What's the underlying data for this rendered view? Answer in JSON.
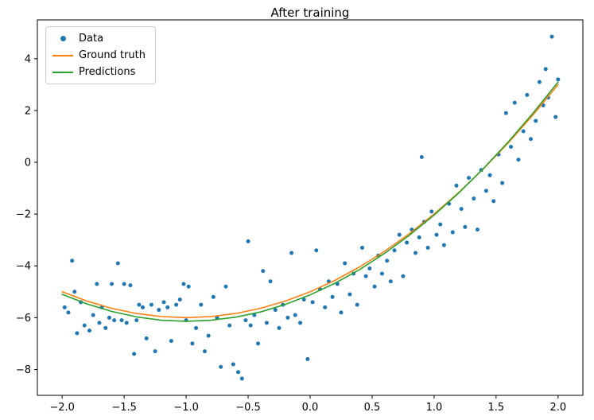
{
  "chart_data": {
    "type": "scatter",
    "title": "After training",
    "xlabel": "",
    "ylabel": "",
    "xlim": [
      -2.2,
      2.2
    ],
    "ylim": [
      -9.0,
      5.5
    ],
    "grid": false,
    "legend_position": "upper left",
    "x_ticks": [
      -2.0,
      -1.5,
      -1.0,
      -0.5,
      0.0,
      0.5,
      1.0,
      1.5,
      2.0
    ],
    "x_tick_labels": [
      "−2.0",
      "−1.5",
      "−1.0",
      "−0.5",
      "0.0",
      "0.5",
      "1.0",
      "1.5",
      "2.0"
    ],
    "y_ticks": [
      -8,
      -6,
      -4,
      -2,
      0,
      2,
      4
    ],
    "y_tick_labels": [
      "−8",
      "−6",
      "−4",
      "−2",
      "0",
      "2",
      "4"
    ],
    "axes_color": "#000000",
    "series": [
      {
        "name": "Data",
        "type": "scatter",
        "color": "#1f77b4",
        "marker": "dot",
        "points": [
          [
            -1.98,
            -5.6
          ],
          [
            -1.95,
            -5.8
          ],
          [
            -1.92,
            -3.8
          ],
          [
            -1.9,
            -5.0
          ],
          [
            -1.88,
            -6.6
          ],
          [
            -1.85,
            -5.4
          ],
          [
            -1.82,
            -6.3
          ],
          [
            -1.78,
            -6.5
          ],
          [
            -1.75,
            -5.9
          ],
          [
            -1.72,
            -4.7
          ],
          [
            -1.7,
            -6.2
          ],
          [
            -1.68,
            -5.6
          ],
          [
            -1.65,
            -6.4
          ],
          [
            -1.62,
            -6.0
          ],
          [
            -1.6,
            -4.7
          ],
          [
            -1.58,
            -6.1
          ],
          [
            -1.55,
            -3.9
          ],
          [
            -1.52,
            -6.1
          ],
          [
            -1.5,
            -4.7
          ],
          [
            -1.48,
            -6.2
          ],
          [
            -1.45,
            -4.75
          ],
          [
            -1.42,
            -7.4
          ],
          [
            -1.4,
            -6.1
          ],
          [
            -1.38,
            -5.5
          ],
          [
            -1.35,
            -5.6
          ],
          [
            -1.32,
            -6.8
          ],
          [
            -1.28,
            -5.5
          ],
          [
            -1.25,
            -7.3
          ],
          [
            -1.22,
            -5.7
          ],
          [
            -1.18,
            -5.4
          ],
          [
            -1.15,
            -5.6
          ],
          [
            -1.12,
            -6.9
          ],
          [
            -1.08,
            -5.5
          ],
          [
            -1.05,
            -5.3
          ],
          [
            -1.02,
            -4.7
          ],
          [
            -1.0,
            -6.1
          ],
          [
            -0.98,
            -4.8
          ],
          [
            -0.95,
            -7.0
          ],
          [
            -0.92,
            -6.4
          ],
          [
            -0.88,
            -5.5
          ],
          [
            -0.85,
            -7.3
          ],
          [
            -0.82,
            -6.7
          ],
          [
            -0.78,
            -5.2
          ],
          [
            -0.75,
            -6.0
          ],
          [
            -0.72,
            -7.9
          ],
          [
            -0.68,
            -4.8
          ],
          [
            -0.65,
            -6.3
          ],
          [
            -0.62,
            -7.8
          ],
          [
            -0.58,
            -8.1
          ],
          [
            -0.55,
            -8.35
          ],
          [
            -0.52,
            -6.1
          ],
          [
            -0.5,
            -3.05
          ],
          [
            -0.48,
            -6.3
          ],
          [
            -0.45,
            -5.9
          ],
          [
            -0.42,
            -7.0
          ],
          [
            -0.38,
            -4.2
          ],
          [
            -0.35,
            -6.2
          ],
          [
            -0.32,
            -4.6
          ],
          [
            -0.28,
            -5.7
          ],
          [
            -0.25,
            -6.4
          ],
          [
            -0.22,
            -5.5
          ],
          [
            -0.18,
            -6.0
          ],
          [
            -0.15,
            -3.5
          ],
          [
            -0.12,
            -5.9
          ],
          [
            -0.08,
            -6.2
          ],
          [
            -0.05,
            -5.3
          ],
          [
            -0.02,
            -7.6
          ],
          [
            0.02,
            -5.4
          ],
          [
            0.05,
            -3.4
          ],
          [
            0.08,
            -4.9
          ],
          [
            0.12,
            -5.6
          ],
          [
            0.15,
            -4.6
          ],
          [
            0.18,
            -5.2
          ],
          [
            0.22,
            -4.7
          ],
          [
            0.25,
            -5.8
          ],
          [
            0.28,
            -3.9
          ],
          [
            0.32,
            -5.1
          ],
          [
            0.35,
            -4.3
          ],
          [
            0.38,
            -5.5
          ],
          [
            0.42,
            -3.3
          ],
          [
            0.45,
            -4.4
          ],
          [
            0.48,
            -4.1
          ],
          [
            0.52,
            -4.8
          ],
          [
            0.55,
            -3.6
          ],
          [
            0.58,
            -4.3
          ],
          [
            0.62,
            -3.8
          ],
          [
            0.65,
            -4.6
          ],
          [
            0.68,
            -3.4
          ],
          [
            0.72,
            -2.8
          ],
          [
            0.75,
            -4.4
          ],
          [
            0.78,
            -3.1
          ],
          [
            0.82,
            -2.6
          ],
          [
            0.85,
            -3.5
          ],
          [
            0.88,
            -2.9
          ],
          [
            0.9,
            0.2
          ],
          [
            0.92,
            -2.3
          ],
          [
            0.95,
            -3.3
          ],
          [
            0.98,
            -1.9
          ],
          [
            1.02,
            -2.8
          ],
          [
            1.05,
            -2.4
          ],
          [
            1.08,
            -3.2
          ],
          [
            1.12,
            -1.6
          ],
          [
            1.15,
            -2.7
          ],
          [
            1.18,
            -0.9
          ],
          [
            1.22,
            -1.8
          ],
          [
            1.25,
            -2.5
          ],
          [
            1.28,
            -0.6
          ],
          [
            1.32,
            -1.4
          ],
          [
            1.35,
            -2.6
          ],
          [
            1.38,
            -0.3
          ],
          [
            1.42,
            -1.1
          ],
          [
            1.45,
            -0.5
          ],
          [
            1.48,
            -1.5
          ],
          [
            1.52,
            0.3
          ],
          [
            1.55,
            -0.8
          ],
          [
            1.58,
            1.9
          ],
          [
            1.62,
            0.6
          ],
          [
            1.65,
            2.3
          ],
          [
            1.68,
            0.1
          ],
          [
            1.72,
            1.2
          ],
          [
            1.75,
            2.6
          ],
          [
            1.78,
            0.9
          ],
          [
            1.82,
            1.6
          ],
          [
            1.85,
            3.1
          ],
          [
            1.88,
            2.2
          ],
          [
            1.9,
            3.6
          ],
          [
            1.92,
            2.5
          ],
          [
            1.95,
            4.85
          ],
          [
            1.98,
            1.75
          ],
          [
            2.0,
            3.2
          ]
        ]
      },
      {
        "name": "Ground truth",
        "type": "line",
        "color": "#ff7f0e",
        "equation": "y = x^2 + 2x - 5",
        "x": [
          -2.0,
          -1.8,
          -1.6,
          -1.4,
          -1.2,
          -1.0,
          -0.8,
          -0.6,
          -0.4,
          -0.2,
          0.0,
          0.2,
          0.4,
          0.6,
          0.8,
          1.0,
          1.2,
          1.4,
          1.6,
          1.8,
          2.0
        ],
        "y": [
          -5.0,
          -5.36,
          -5.64,
          -5.84,
          -5.96,
          -6.0,
          -5.96,
          -5.84,
          -5.64,
          -5.36,
          -5.0,
          -4.56,
          -4.04,
          -3.44,
          -2.76,
          -2.0,
          -1.16,
          -0.24,
          0.76,
          1.84,
          3.0
        ]
      },
      {
        "name": "Predictions",
        "type": "line",
        "color": "#2ca02c",
        "x": [
          -2.0,
          -1.8,
          -1.6,
          -1.4,
          -1.2,
          -1.0,
          -0.8,
          -0.6,
          -0.4,
          -0.2,
          0.0,
          0.2,
          0.4,
          0.6,
          0.8,
          1.0,
          1.2,
          1.4,
          1.6,
          1.8,
          2.0
        ],
        "y": [
          -5.1,
          -5.47,
          -5.76,
          -5.97,
          -6.1,
          -6.14,
          -6.1,
          -5.98,
          -5.78,
          -5.49,
          -5.12,
          -4.67,
          -4.14,
          -3.52,
          -2.82,
          -2.04,
          -1.18,
          -0.23,
          0.8,
          1.91,
          3.1
        ]
      }
    ]
  }
}
